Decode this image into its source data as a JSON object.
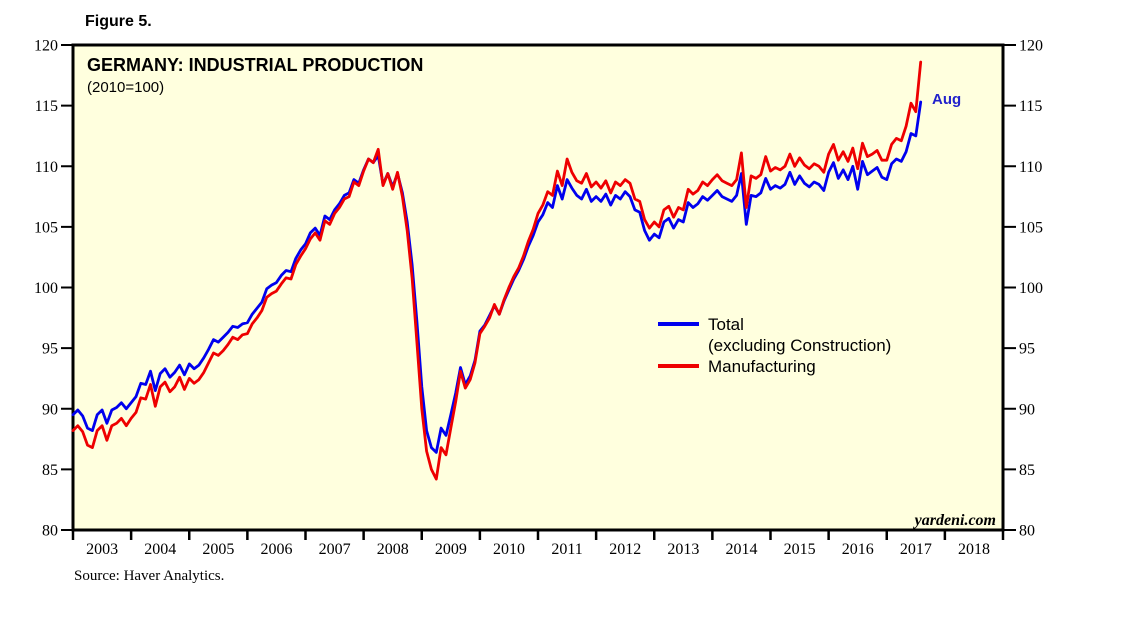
{
  "figure_label": "Figure 5.",
  "source": "Source: Haver Analytics.",
  "chart_data": {
    "type": "line",
    "title": "GERMANY: INDUSTRIAL PRODUCTION",
    "subtitle": "(2010=100)",
    "watermark": "yardeni.com",
    "annotation": {
      "text": "Aug",
      "color": "#2222CC"
    },
    "plot_bg": "#FFFFDE",
    "frame_color": "#000000",
    "frequency": "monthly",
    "x_start": "2003-01",
    "x_end": "2017-08",
    "ylim": [
      80,
      120
    ],
    "y_ticks": [
      80,
      85,
      90,
      95,
      100,
      105,
      110,
      115,
      120
    ],
    "x_tick_years": [
      "2003",
      "2004",
      "2005",
      "2006",
      "2007",
      "2008",
      "2009",
      "2010",
      "2011",
      "2012",
      "2013",
      "2014",
      "2015",
      "2016",
      "2017",
      "2018"
    ],
    "grid": "off",
    "legend_position": "center-right",
    "legend": {
      "total_line1": "Total",
      "total_line2": "(excluding Construction)",
      "manufacturing": "Manufacturing"
    },
    "series": [
      {
        "name": "Total (excluding Construction)",
        "color": "#0000EE",
        "values": [
          89.5,
          89.9,
          89.4,
          88.4,
          88.2,
          89.5,
          89.9,
          88.8,
          89.9,
          90.1,
          90.5,
          90.0,
          90.5,
          91.0,
          92.1,
          92.0,
          93.1,
          91.5,
          92.9,
          93.3,
          92.6,
          93.0,
          93.6,
          92.8,
          93.7,
          93.3,
          93.6,
          94.2,
          94.9,
          95.7,
          95.5,
          95.9,
          96.3,
          96.8,
          96.7,
          97.0,
          97.1,
          97.8,
          98.3,
          98.8,
          99.9,
          100.2,
          100.4,
          101.0,
          101.4,
          101.3,
          102.4,
          103.1,
          103.6,
          104.5,
          104.9,
          104.3,
          105.9,
          105.6,
          106.4,
          106.9,
          107.6,
          107.8,
          108.9,
          108.6,
          109.7,
          110.6,
          110.3,
          110.9,
          108.5,
          109.4,
          108.3,
          109.4,
          107.8,
          105.4,
          101.9,
          97.2,
          91.8,
          88.2,
          86.8,
          86.4,
          88.4,
          87.8,
          89.5,
          91.3,
          93.4,
          92.0,
          92.7,
          94.0,
          96.4,
          96.9,
          97.7,
          98.5,
          97.8,
          98.9,
          99.8,
          100.7,
          101.4,
          102.3,
          103.4,
          104.3,
          105.4,
          106.0,
          107.0,
          106.6,
          108.4,
          107.3,
          108.9,
          108.2,
          107.6,
          107.3,
          108.1,
          107.1,
          107.5,
          107.1,
          107.7,
          106.8,
          107.6,
          107.3,
          107.9,
          107.5,
          106.4,
          106.2,
          104.7,
          103.9,
          104.4,
          104.1,
          105.4,
          105.7,
          104.9,
          105.6,
          105.4,
          107.0,
          106.6,
          106.9,
          107.5,
          107.2,
          107.6,
          108.0,
          107.5,
          107.3,
          107.1,
          107.6,
          109.4,
          105.2,
          107.6,
          107.5,
          107.8,
          109.0,
          108.1,
          108.4,
          108.2,
          108.5,
          109.5,
          108.5,
          109.2,
          108.6,
          108.3,
          108.7,
          108.5,
          108.0,
          109.5,
          110.3,
          109.0,
          109.7,
          108.9,
          110.0,
          108.1,
          110.4,
          109.3,
          109.6,
          109.9,
          109.1,
          108.9,
          110.2,
          110.6,
          110.4,
          111.2,
          112.7,
          112.5,
          115.3
        ]
      },
      {
        "name": "Manufacturing",
        "color": "#EE0000",
        "values": [
          88.2,
          88.6,
          88.1,
          87.0,
          86.8,
          88.2,
          88.6,
          87.4,
          88.6,
          88.8,
          89.2,
          88.6,
          89.2,
          89.7,
          90.9,
          90.8,
          92.0,
          90.2,
          91.8,
          92.2,
          91.4,
          91.8,
          92.6,
          91.6,
          92.5,
          92.1,
          92.4,
          93.0,
          93.8,
          94.6,
          94.4,
          94.8,
          95.3,
          95.9,
          95.7,
          96.1,
          96.2,
          97.0,
          97.5,
          98.1,
          99.2,
          99.5,
          99.7,
          100.3,
          100.8,
          100.7,
          101.9,
          102.6,
          103.2,
          104.0,
          104.5,
          103.9,
          105.5,
          105.2,
          106.1,
          106.6,
          107.3,
          107.5,
          108.7,
          108.4,
          109.6,
          110.6,
          110.3,
          111.4,
          108.4,
          109.4,
          108.1,
          109.5,
          107.5,
          104.7,
          100.8,
          95.5,
          90.0,
          86.5,
          85.0,
          84.2,
          86.8,
          86.2,
          88.4,
          90.6,
          93.1,
          91.7,
          92.4,
          93.8,
          96.2,
          96.8,
          97.5,
          98.6,
          97.8,
          99.0,
          100.0,
          100.9,
          101.6,
          102.6,
          103.8,
          104.8,
          106.1,
          106.8,
          107.9,
          107.6,
          109.6,
          108.4,
          110.6,
          109.5,
          108.8,
          108.6,
          109.4,
          108.3,
          108.7,
          108.2,
          108.8,
          107.8,
          108.7,
          108.4,
          108.9,
          108.6,
          107.3,
          107.1,
          105.6,
          104.9,
          105.4,
          105.0,
          106.4,
          106.7,
          105.8,
          106.6,
          106.4,
          108.1,
          107.7,
          108.0,
          108.7,
          108.4,
          108.9,
          109.3,
          108.8,
          108.6,
          108.4,
          108.9,
          111.1,
          106.6,
          109.2,
          109.0,
          109.3,
          110.8,
          109.6,
          109.9,
          109.7,
          110.0,
          111.0,
          110.0,
          110.7,
          110.1,
          109.8,
          110.2,
          110.0,
          109.5,
          111.0,
          111.8,
          110.5,
          111.2,
          110.4,
          111.5,
          109.8,
          111.9,
          110.8,
          111.0,
          111.3,
          110.5,
          110.5,
          111.8,
          112.3,
          112.1,
          113.3,
          115.2,
          114.5,
          118.6
        ]
      }
    ]
  }
}
